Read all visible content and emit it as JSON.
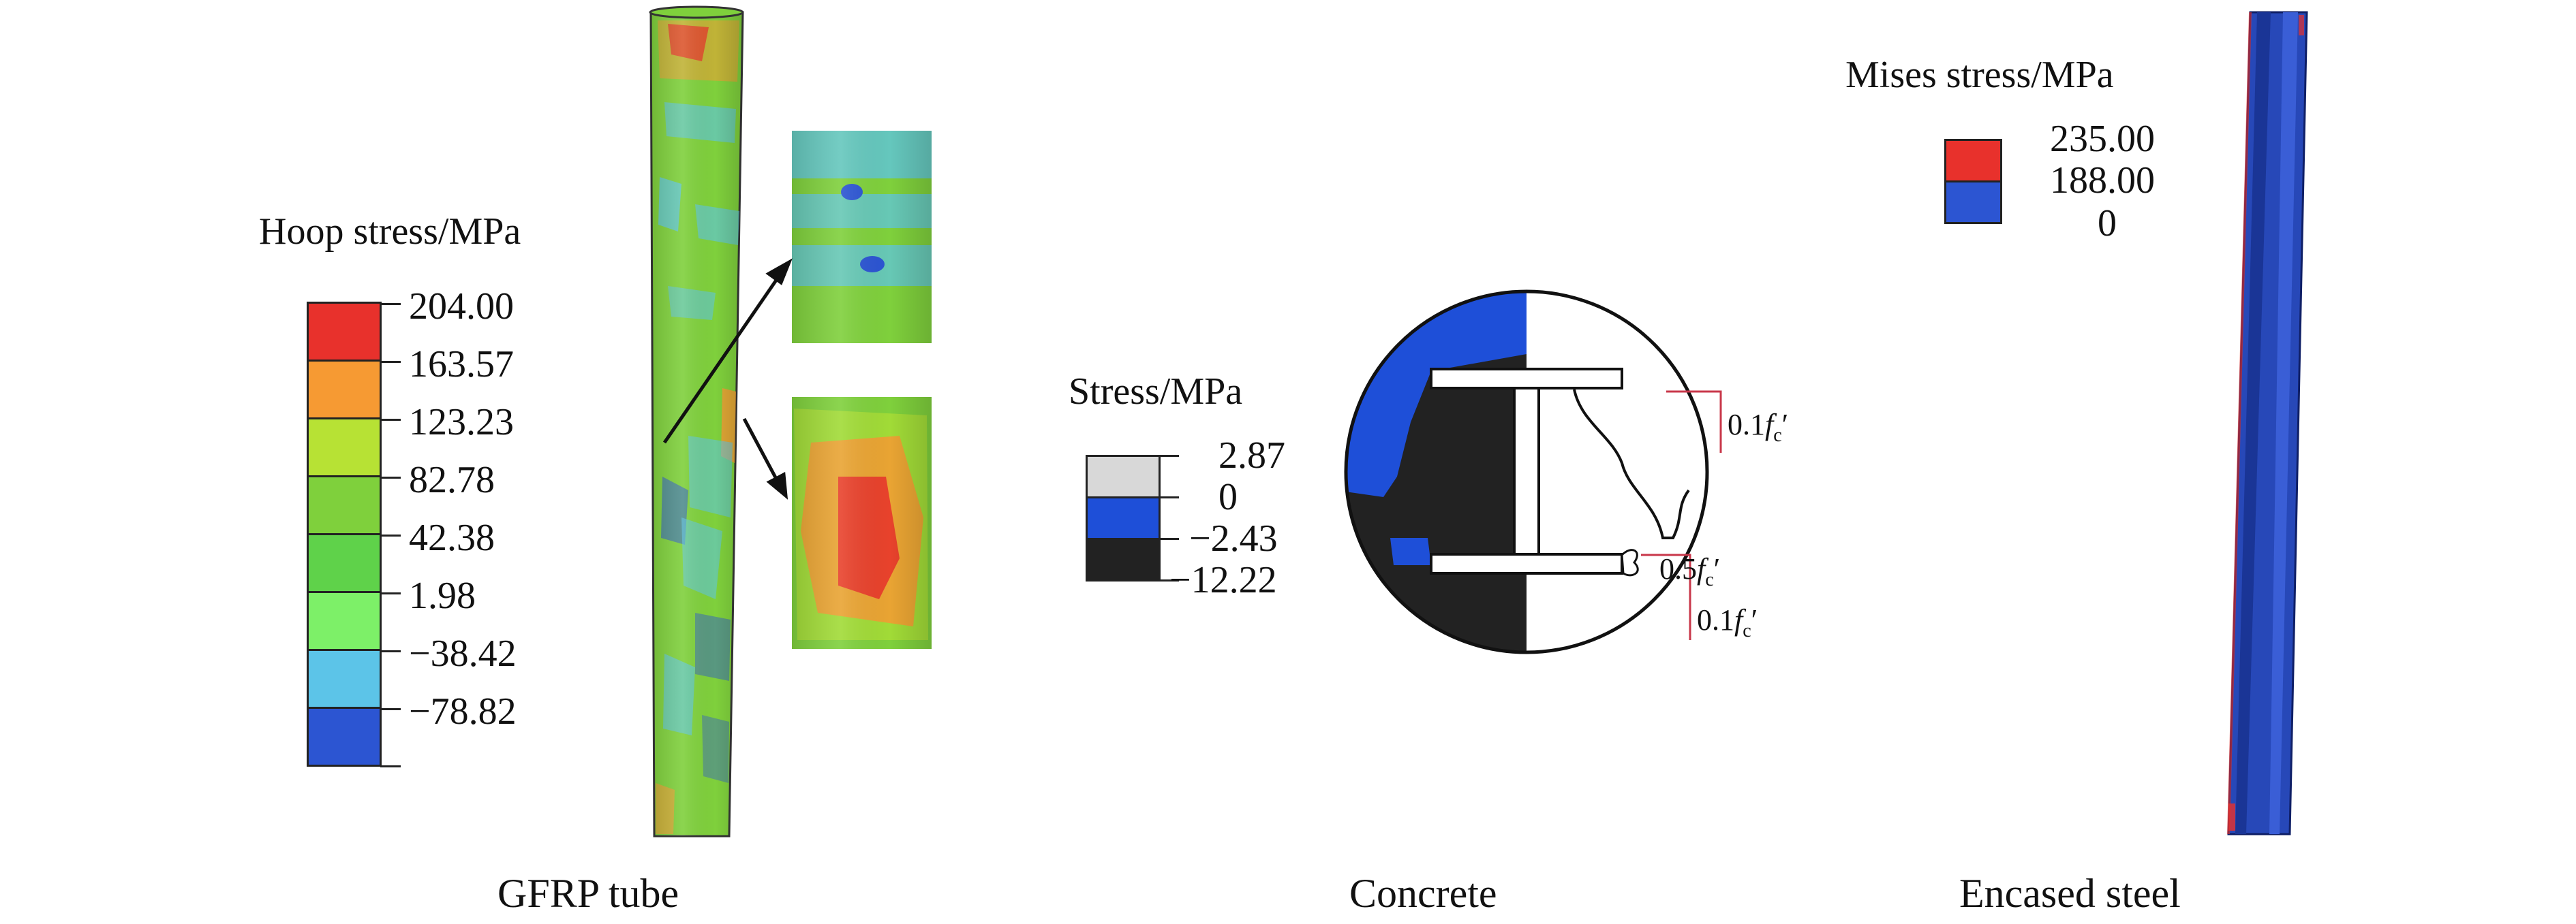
{
  "panels": {
    "gfrp": {
      "legend_title": "Hoop stress/MPa",
      "values": [
        "204.00",
        "163.57",
        "123.23",
        "82.78",
        "42.38",
        "1.98",
        "−38.42",
        "−78.82"
      ],
      "band_colors": [
        "#e8312c",
        "#f69a33",
        "#b7e234",
        "#7fd03c",
        "#5fd24a",
        "#7df068",
        "#5cc4e8",
        "#2c55d2"
      ],
      "caption": "GFRP tube"
    },
    "concrete": {
      "legend_title": "Stress/MPa",
      "values": [
        "2.87",
        "0",
        "−2.43",
        "−12.22"
      ],
      "band_colors": [
        "#d8d8d8",
        "#1e4fd8",
        "#222222"
      ],
      "annotations": {
        "upper": {
          "coef": "0.1",
          "f": "f",
          "sub": "c",
          "prime": "′"
        },
        "middle": {
          "coef": "0.5",
          "f": "f",
          "sub": "c",
          "prime": "′"
        },
        "lower": {
          "coef": "0.1",
          "f": "f",
          "sub": "c",
          "prime": "′"
        }
      },
      "caption": "Concrete"
    },
    "steel": {
      "legend_title": "Mises stress/MPa",
      "values": [
        "235.00",
        "188.00",
        "0"
      ],
      "band_colors": [
        "#e8312c",
        "#2c55d2"
      ],
      "caption": "Encased steel"
    }
  },
  "colors": {
    "annotation_line": "#c8374a",
    "steel_body": "#2748b8"
  }
}
